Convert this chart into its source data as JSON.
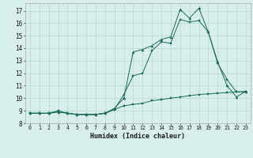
{
  "title": "",
  "xlabel": "Humidex (Indice chaleur)",
  "background_color": "#d8eeec",
  "grid_color": "#b8d8d4",
  "line_color": "#1a6b5a",
  "xlim": [
    -0.5,
    23.5
  ],
  "ylim": [
    8,
    17.6
  ],
  "yticks": [
    8,
    9,
    10,
    11,
    12,
    13,
    14,
    15,
    16,
    17
  ],
  "xticks": [
    0,
    1,
    2,
    3,
    4,
    5,
    6,
    7,
    8,
    9,
    10,
    11,
    12,
    13,
    14,
    15,
    16,
    17,
    18,
    19,
    20,
    21,
    22,
    23
  ],
  "line1_x": [
    0,
    1,
    2,
    3,
    4,
    5,
    6,
    7,
    8,
    9,
    10,
    11,
    12,
    13,
    14,
    15,
    16,
    17,
    18,
    19,
    20,
    21,
    22,
    23
  ],
  "line1_y": [
    8.8,
    8.8,
    8.8,
    8.9,
    8.8,
    8.7,
    8.7,
    8.7,
    8.8,
    9.1,
    10.3,
    11.8,
    12.0,
    13.8,
    14.5,
    14.4,
    16.3,
    16.1,
    16.2,
    15.3,
    12.8,
    11.5,
    10.5,
    10.5
  ],
  "line2_x": [
    0,
    1,
    2,
    3,
    4,
    5,
    6,
    7,
    8,
    9,
    10,
    11,
    12,
    13,
    14,
    15,
    16,
    17,
    18,
    19,
    20,
    21,
    22,
    23
  ],
  "line2_y": [
    8.8,
    8.8,
    8.8,
    9.0,
    8.8,
    8.7,
    8.7,
    8.7,
    8.8,
    9.1,
    9.4,
    9.5,
    9.6,
    9.8,
    9.9,
    10.0,
    10.1,
    10.2,
    10.3,
    10.35,
    10.4,
    10.45,
    10.5,
    10.55
  ],
  "line3_x": [
    0,
    1,
    2,
    3,
    4,
    5,
    6,
    7,
    8,
    9,
    10,
    11,
    12,
    13,
    14,
    15,
    16,
    17,
    18,
    19,
    20,
    21,
    22,
    23
  ],
  "line3_y": [
    8.8,
    8.8,
    8.8,
    8.9,
    8.8,
    8.7,
    8.7,
    8.7,
    8.8,
    9.2,
    10.0,
    13.7,
    13.9,
    14.2,
    14.7,
    14.9,
    17.1,
    16.4,
    17.2,
    15.3,
    12.9,
    11.0,
    10.1,
    10.55
  ]
}
